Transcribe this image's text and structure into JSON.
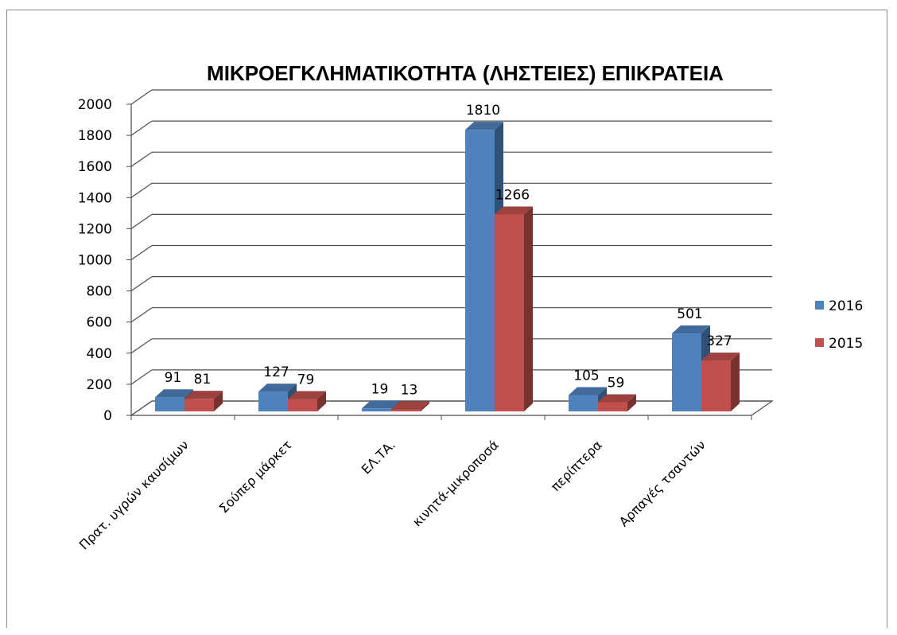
{
  "chart_data": {
    "type": "bar",
    "title": "ΜΙΚΡΟΕΓΚΛΗΜΑΤΙΚΟΤΗΤΑ (ΛΗΣΤΕΙΕΣ) ΕΠΙΚΡΑΤΕΙΑ",
    "categories": [
      "Πρατ. υγρών καυσίμων",
      "Σούπερ μάρκετ",
      "ΕΛ.ΤΑ.",
      "κινητά-μικροποσά",
      "περίπτερα",
      "Αρπαγές τσαντών"
    ],
    "series": [
      {
        "name": "2016",
        "values": [
          91,
          127,
          19,
          1810,
          105,
          501
        ],
        "color": "#4f81bd"
      },
      {
        "name": "2015",
        "values": [
          81,
          79,
          13,
          1266,
          59,
          327
        ],
        "color": "#c0504d"
      }
    ],
    "ylim": [
      0,
      2000
    ],
    "yticks": [
      0,
      200,
      400,
      600,
      800,
      1000,
      1200,
      1400,
      1600,
      1800,
      2000
    ],
    "grid": true,
    "legend": "right",
    "style": "3d-clustered-column"
  }
}
